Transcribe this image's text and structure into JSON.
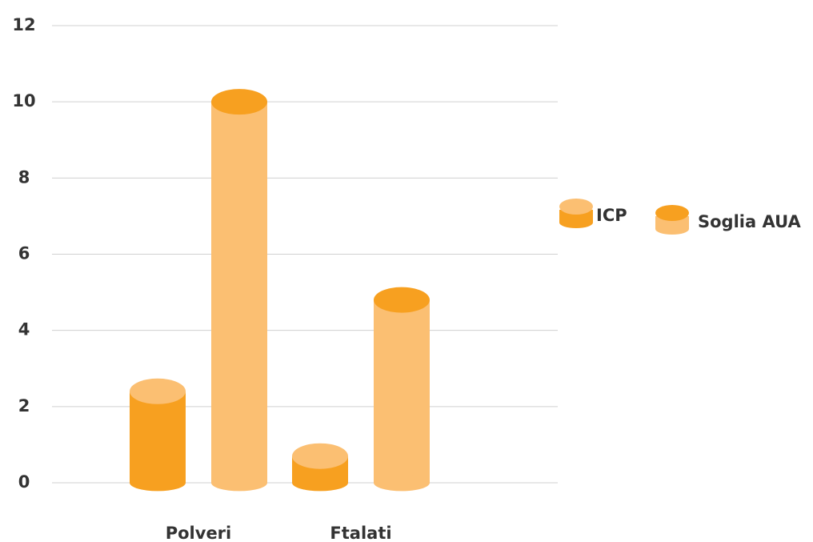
{
  "chart_data": {
    "type": "cylinder-bar",
    "categories": [
      "Polveri",
      "Ftalati"
    ],
    "series": [
      {
        "name": "ICP",
        "color": "#f7a020",
        "top_color": "#fbbf72",
        "values": [
          2.4,
          0.7
        ]
      },
      {
        "name": "Soglia AUA",
        "color": "#fbbf72",
        "top_color": "#f7a020",
        "values": [
          10,
          4.8
        ]
      }
    ],
    "ylim": [
      0,
      12
    ],
    "yticks": [
      0,
      2,
      4,
      6,
      8,
      10,
      12
    ],
    "grid": true,
    "legend": "right"
  }
}
